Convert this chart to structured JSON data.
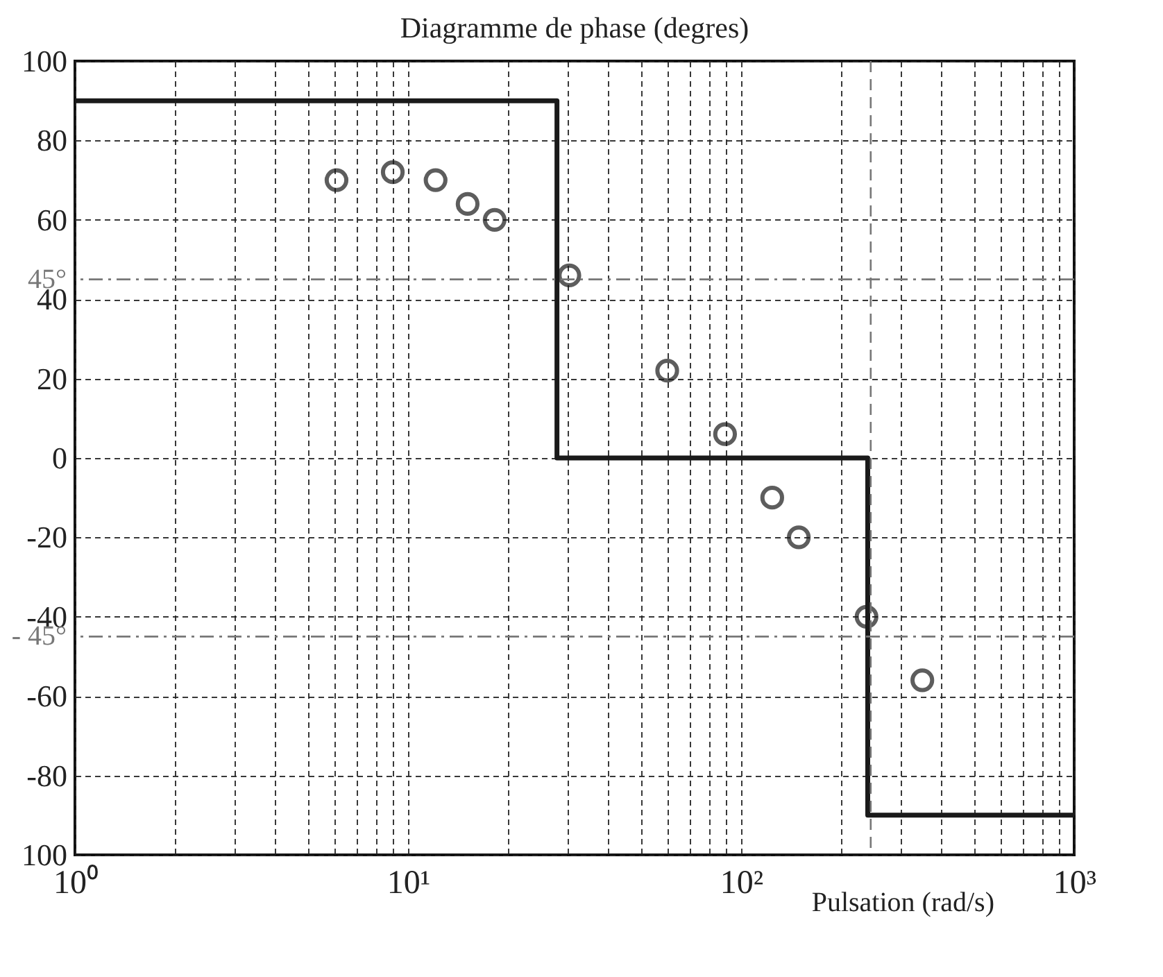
{
  "chart_data": {
    "type": "scatter",
    "title": "Diagramme de phase (degres)",
    "xlabel": "Pulsation (rad/s)",
    "log": "x",
    "grid": true,
    "xlim": [
      1,
      1000
    ],
    "xticks": [
      {
        "value": 1,
        "label": "10⁰"
      },
      {
        "value": 2,
        "label": null
      },
      {
        "value": 3,
        "label": null
      },
      {
        "value": 4,
        "label": null
      },
      {
        "value": 5,
        "label": null
      },
      {
        "value": 6,
        "label": null
      },
      {
        "value": 7,
        "label": null
      },
      {
        "value": 8,
        "label": null
      },
      {
        "value": 9,
        "label": null
      },
      {
        "value": 10,
        "label": "10¹"
      },
      {
        "value": 20,
        "label": null
      },
      {
        "value": 30,
        "label": null
      },
      {
        "value": 40,
        "label": null
      },
      {
        "value": 50,
        "label": null
      },
      {
        "value": 60,
        "label": null
      },
      {
        "value": 70,
        "label": null
      },
      {
        "value": 80,
        "label": null
      },
      {
        "value": 90,
        "label": null
      },
      {
        "value": 100,
        "label": "10²"
      },
      {
        "value": 200,
        "label": null
      },
      {
        "value": 300,
        "label": null
      },
      {
        "value": 400,
        "label": null
      },
      {
        "value": 500,
        "label": null
      },
      {
        "value": 600,
        "label": null
      },
      {
        "value": 700,
        "label": null
      },
      {
        "value": 800,
        "label": null
      },
      {
        "value": 900,
        "label": null
      },
      {
        "value": 1000,
        "label": "10³"
      }
    ],
    "ylim": [
      -100,
      100
    ],
    "yticks": [
      {
        "value": -100,
        "label": "100"
      },
      -80,
      -60,
      -40,
      -20,
      0,
      20,
      40,
      60,
      80,
      100
    ],
    "series": [
      {
        "type": "line",
        "color": "#1a1a1a",
        "marker": "none",
        "x": [
          1,
          28,
          28,
          240,
          240,
          1000
        ],
        "values": [
          90,
          90,
          0,
          0,
          -90,
          -90
        ]
      },
      {
        "color": "#1a1a1a",
        "marker": "circle",
        "x": [
          6.1,
          9,
          12.1,
          15.1,
          18.2,
          30.5,
          60,
          89.5,
          124,
          149,
          238,
          350
        ],
        "values": [
          70,
          72,
          70,
          64,
          60,
          46,
          22,
          6,
          -10,
          -20,
          -40,
          -56
        ]
      }
    ],
    "ref_lines": [
      {
        "axis": "y",
        "value": 45,
        "label": "45°",
        "color": "#777777",
        "line_style": "dashdot"
      },
      {
        "axis": "y",
        "value": -45,
        "label": "- 45°",
        "color": "#777777",
        "line_style": "dashdot"
      },
      {
        "axis": "x",
        "value": 245,
        "color": "#777777",
        "line_style": "dashed"
      }
    ]
  }
}
